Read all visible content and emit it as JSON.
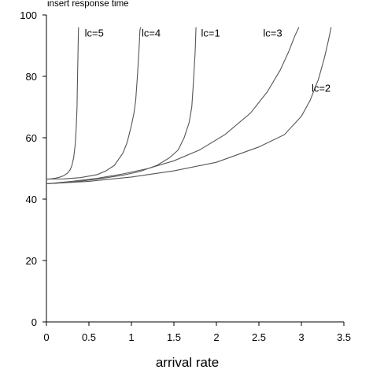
{
  "chart_data": {
    "type": "line",
    "title": "",
    "ylabel": "insert response time",
    "xlabel": "arrival rate",
    "xlim": [
      0,
      3.5
    ],
    "ylim": [
      0,
      100
    ],
    "xticks": [
      "0",
      "0.5",
      "1",
      "1.5",
      "2",
      "2.5",
      "3",
      "3.5"
    ],
    "yticks": [
      "0",
      "20",
      "40",
      "60",
      "80",
      "100"
    ],
    "grid": false,
    "legend": "none",
    "series": [
      {
        "name": "lc=5",
        "label_anchor": [
          0.45,
          93
        ],
        "points": [
          [
            0,
            46.5
          ],
          [
            0.05,
            46.6
          ],
          [
            0.1,
            46.8
          ],
          [
            0.15,
            47.1
          ],
          [
            0.2,
            47.6
          ],
          [
            0.25,
            48.5
          ],
          [
            0.28,
            49.6
          ],
          [
            0.3,
            51
          ],
          [
            0.32,
            53.5
          ],
          [
            0.34,
            58
          ],
          [
            0.35,
            63
          ],
          [
            0.36,
            70
          ],
          [
            0.365,
            78
          ],
          [
            0.37,
            86
          ],
          [
            0.375,
            93
          ],
          [
            0.378,
            96
          ]
        ]
      },
      {
        "name": "lc=4",
        "label_anchor": [
          1.12,
          93
        ],
        "points": [
          [
            0,
            46.5
          ],
          [
            0.2,
            46.6
          ],
          [
            0.4,
            47
          ],
          [
            0.6,
            48
          ],
          [
            0.7,
            49.2
          ],
          [
            0.8,
            51
          ],
          [
            0.9,
            55
          ],
          [
            0.95,
            58.5
          ],
          [
            1,
            64
          ],
          [
            1.03,
            68
          ],
          [
            1.05,
            72
          ],
          [
            1.07,
            80
          ],
          [
            1.09,
            89
          ],
          [
            1.1,
            95
          ],
          [
            1.11,
            96
          ]
        ]
      },
      {
        "name": "lc=1",
        "label_anchor": [
          1.82,
          93
        ],
        "points": [
          [
            0,
            45
          ],
          [
            0.3,
            45.5
          ],
          [
            0.6,
            46.5
          ],
          [
            0.9,
            47.8
          ],
          [
            1.1,
            49
          ],
          [
            1.3,
            51
          ],
          [
            1.45,
            53.5
          ],
          [
            1.55,
            56
          ],
          [
            1.62,
            60
          ],
          [
            1.68,
            65
          ],
          [
            1.71,
            70
          ],
          [
            1.73,
            78
          ],
          [
            1.75,
            88
          ],
          [
            1.76,
            96
          ]
        ]
      },
      {
        "name": "lc=3",
        "label_anchor": [
          2.55,
          93
        ],
        "points": [
          [
            0,
            45
          ],
          [
            0.3,
            45.8
          ],
          [
            0.6,
            46.8
          ],
          [
            0.9,
            48.2
          ],
          [
            1.2,
            50
          ],
          [
            1.5,
            52.5
          ],
          [
            1.8,
            56
          ],
          [
            2.1,
            61
          ],
          [
            2.4,
            68
          ],
          [
            2.6,
            75
          ],
          [
            2.75,
            82
          ],
          [
            2.85,
            88
          ],
          [
            2.92,
            93
          ],
          [
            2.97,
            96
          ]
        ]
      },
      {
        "name": "lc=2",
        "label_anchor": [
          3.12,
          75
        ],
        "points": [
          [
            0,
            45
          ],
          [
            0.5,
            45.8
          ],
          [
            1,
            47.2
          ],
          [
            1.5,
            49.2
          ],
          [
            2,
            52
          ],
          [
            2.5,
            57
          ],
          [
            2.8,
            61
          ],
          [
            3,
            67
          ],
          [
            3.1,
            72
          ],
          [
            3.2,
            79
          ],
          [
            3.27,
            86
          ],
          [
            3.32,
            92
          ],
          [
            3.35,
            96
          ]
        ]
      }
    ]
  }
}
